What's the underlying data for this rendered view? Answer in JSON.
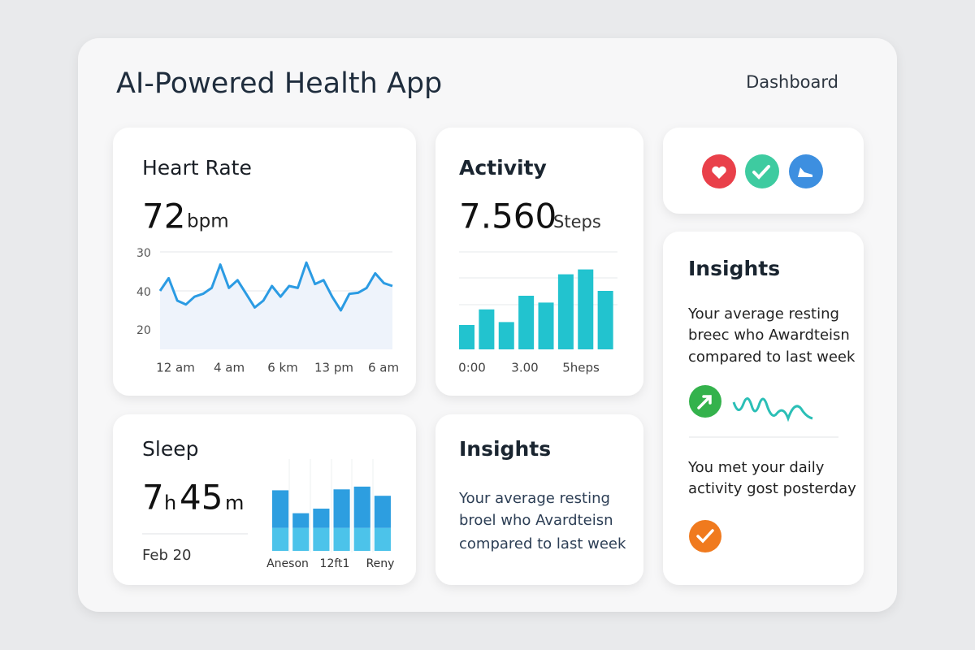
{
  "header": {
    "title": "AI-Powered Health App",
    "nav": "Dashboard"
  },
  "heart_rate": {
    "title": "Heart Rate",
    "value": 72,
    "unit": "bpm",
    "chart": {
      "type": "line",
      "color": "#2b9be3",
      "ylim": [
        0,
        100
      ],
      "y_labels": [
        "30",
        "40",
        "20"
      ],
      "x_labels": [
        "12 am",
        "4 am",
        "6 km",
        "13 pm",
        "6 am"
      ],
      "values": [
        60,
        73,
        50,
        46,
        54,
        57,
        63,
        87,
        63,
        71,
        57,
        43,
        50,
        65,
        54,
        65,
        63,
        89,
        67,
        71,
        54,
        40,
        57,
        58,
        63,
        78,
        68,
        65
      ]
    }
  },
  "activity": {
    "title": "Activity",
    "value": "7.560",
    "unit": "Steps",
    "chart": {
      "type": "bar",
      "color": "#22c3cf",
      "ylim": [
        0,
        100
      ],
      "x_labels": [
        "0:00",
        "3.00",
        "5heps"
      ],
      "values": [
        25,
        41,
        28,
        55,
        48,
        77,
        82,
        60
      ]
    }
  },
  "sleep": {
    "title": "Sleep",
    "hours": 7,
    "hours_unit": "h",
    "minutes": 45,
    "minutes_unit": "m",
    "date": "Feb 20",
    "chart": {
      "type": "stacked-bar",
      "ylim": [
        0,
        100
      ],
      "x_labels": [
        "Aneson",
        "12ft1",
        "Reny"
      ],
      "series": [
        {
          "color": "#4cc3ea",
          "values": [
            25,
            25,
            25,
            25,
            25,
            25
          ]
        },
        {
          "color": "#2d9ee0",
          "values": [
            41,
            16,
            21,
            42,
            45,
            35
          ]
        }
      ]
    }
  },
  "insights_middle": {
    "title": "Insights",
    "lines": [
      "Your average resting",
      "broel who Avardteisn",
      "compared to last week"
    ]
  },
  "insights_right": {
    "title": "Insights",
    "lines": [
      "Your average resting",
      "breec who Awardteisn",
      "compared to last week"
    ],
    "lines_2": [
      "You met your daily",
      "activity gost posterday"
    ]
  }
}
